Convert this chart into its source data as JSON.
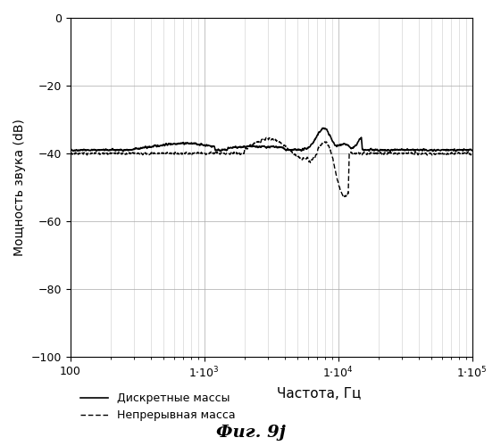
{
  "title": "",
  "xlabel": "Частота, Гц",
  "ylabel": "Мощность звука (dB)",
  "caption": "Фиг. 9j",
  "legend_solid": "Дискретные массы",
  "legend_dashed": "Непрерывная масса",
  "xlim": [
    100,
    100000
  ],
  "ylim": [
    -100,
    0
  ],
  "yticks": [
    0,
    -20,
    -40,
    -60,
    -80,
    -100
  ],
  "background_color": "#ffffff",
  "line_color": "#000000"
}
